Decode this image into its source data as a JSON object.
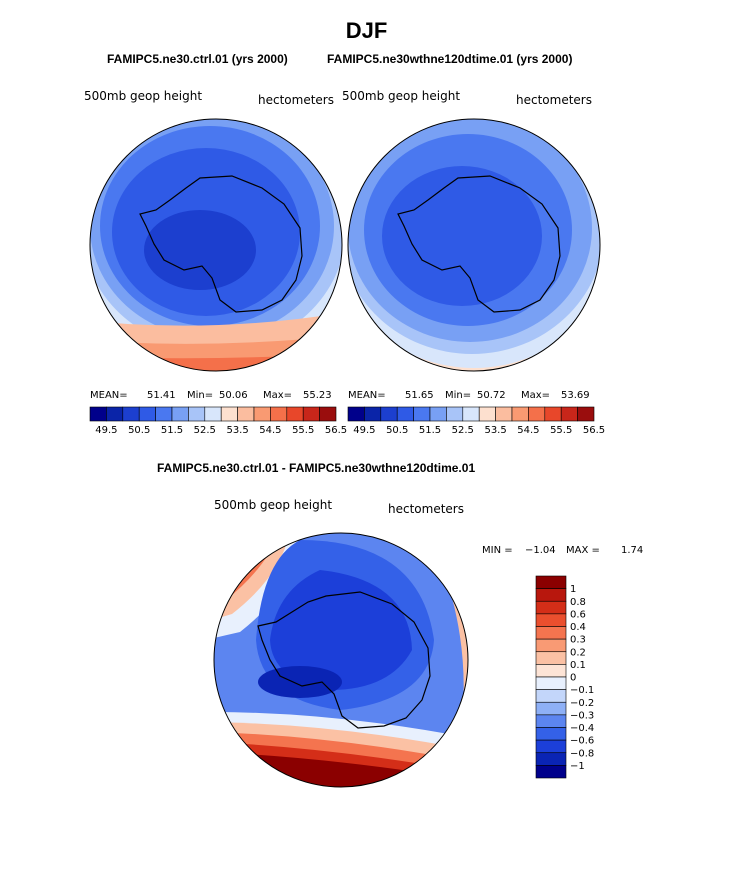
{
  "figure": {
    "title": "DJF",
    "subtitle_left": "FAMIPC5.ne30.ctrl.01 (yrs 2000)",
    "subtitle_right": "FAMIPC5.ne30wthne120dtime.01 (yrs 2000)",
    "diff_title": "FAMIPC5.ne30.ctrl.01 - FAMIPC5.ne30wthne120dtime.01"
  },
  "colors": {
    "abs_palette": [
      "#00008b",
      "#0a24a8",
      "#1c3fcf",
      "#2f5ae6",
      "#4a78f0",
      "#78a0f4",
      "#a8c4f8",
      "#d8e6fb",
      "#fde0cf",
      "#fbbd9f",
      "#f99a72",
      "#f4704a",
      "#e8472a",
      "#c8261a",
      "#9a0d0d"
    ],
    "diff_palette": [
      "#00008b",
      "#0a24b4",
      "#1c3fd9",
      "#3461e8",
      "#5c85f0",
      "#8eb0f6",
      "#c3d6fa",
      "#e8f0fd",
      "#fde4d6",
      "#fbc1a4",
      "#f99a74",
      "#f4744f",
      "#ea4f2e",
      "#d42e18",
      "#b8170d",
      "#8b0000"
    ],
    "land_outline": "#000000",
    "map_border": "#000000"
  },
  "chart_data": [
    {
      "type": "heatmap",
      "name": "ctrl-map",
      "variable_label": "500mb geop height",
      "units_label": "hectometers",
      "stats": {
        "mean_label": "MEAN=",
        "mean": "51.41",
        "min_label": "Min=",
        "min": "50.06",
        "max_label": "Max=",
        "max": "55.23"
      },
      "colorbar_ticks": [
        "49.5",
        "50.5",
        "51.5",
        "52.5",
        "53.5",
        "54.5",
        "55.5",
        "56.5"
      ],
      "levels": [
        49.5,
        50,
        50.5,
        51,
        51.5,
        52,
        52.5,
        53,
        53.5,
        54,
        54.5,
        55,
        55.5,
        56,
        56.5
      ]
    },
    {
      "type": "heatmap",
      "name": "test-map",
      "variable_label": "500mb geop height",
      "units_label": "hectometers",
      "stats": {
        "mean_label": "MEAN=",
        "mean": "51.65",
        "min_label": "Min=",
        "min": "50.72",
        "max_label": "Max=",
        "max": "53.69"
      },
      "colorbar_ticks": [
        "49.5",
        "50.5",
        "51.5",
        "52.5",
        "53.5",
        "54.5",
        "55.5",
        "56.5"
      ],
      "levels": [
        49.5,
        50,
        50.5,
        51,
        51.5,
        52,
        52.5,
        53,
        53.5,
        54,
        54.5,
        55,
        55.5,
        56,
        56.5
      ]
    },
    {
      "type": "heatmap",
      "name": "difference-map",
      "variable_label": "500mb geop height",
      "units_label": "hectometers",
      "stats": {
        "min_label": "MIN =",
        "min": "−1.04",
        "max_label": "MAX =",
        "max": "1.74"
      },
      "colorbar_ticks": [
        "1",
        "0.8",
        "0.6",
        "0.4",
        "0.3",
        "0.2",
        "0.1",
        "0",
        "−0.1",
        "−0.2",
        "−0.3",
        "−0.4",
        "−0.6",
        "−0.8",
        "−1"
      ],
      "levels": [
        -1,
        -0.8,
        -0.6,
        -0.4,
        -0.3,
        -0.2,
        -0.1,
        0,
        0.1,
        0.2,
        0.3,
        0.4,
        0.6,
        0.8,
        1
      ]
    }
  ]
}
